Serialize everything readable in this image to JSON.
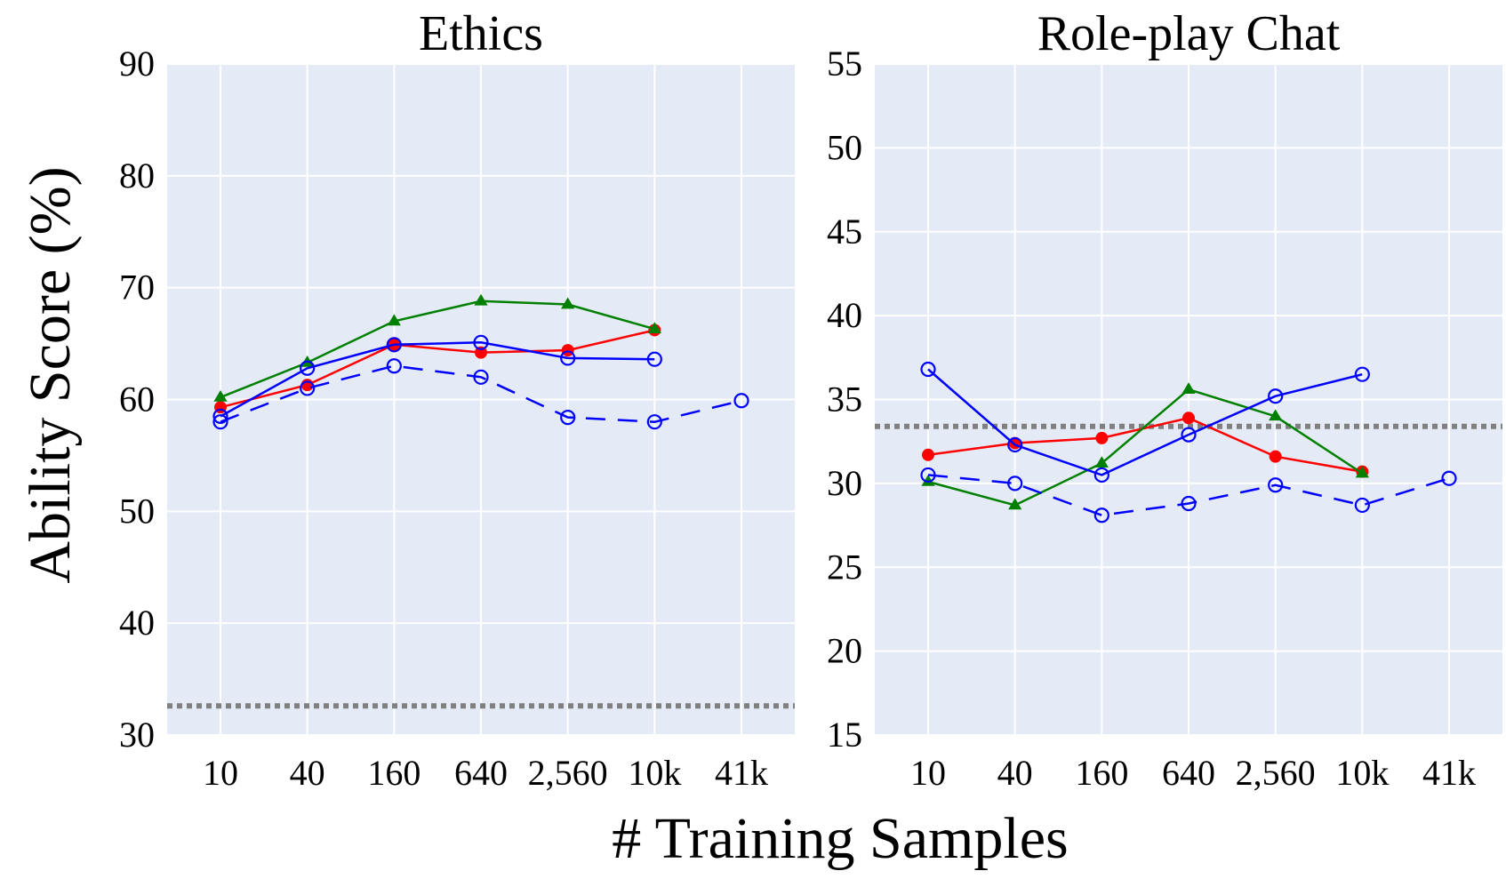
{
  "figure": {
    "ylabel": "Ability Score (%)",
    "xlabel": "# Training Samples"
  },
  "colors": {
    "panel_bg": "#e5ebf6",
    "grid": "#ffffff",
    "baseline": "#808080",
    "red": "#ff0000",
    "green": "#008000",
    "blue": "#0000ff"
  },
  "chart_data": [
    {
      "type": "line",
      "title": "Ethics",
      "xlabel": "# Training Samples",
      "ylabel": "Ability Score (%)",
      "categories": [
        "10",
        "40",
        "160",
        "640",
        "2,560",
        "10k",
        "41k"
      ],
      "ylim": [
        30,
        90
      ],
      "yticks": [
        30,
        40,
        50,
        60,
        70,
        80,
        90
      ],
      "grid": true,
      "baseline": 32.6,
      "series": [
        {
          "name": "red",
          "color": "#ff0000",
          "marker": "filled-circle",
          "dash": false,
          "values": [
            59.3,
            61.3,
            64.9,
            64.2,
            64.4,
            66.2,
            null
          ]
        },
        {
          "name": "green",
          "color": "#008000",
          "marker": "triangle",
          "dash": false,
          "values": [
            60.2,
            63.3,
            67.0,
            68.8,
            68.5,
            66.3,
            null
          ]
        },
        {
          "name": "blue solid",
          "color": "#0000ff",
          "marker": "open-circle",
          "dash": false,
          "values": [
            58.5,
            62.8,
            64.9,
            65.1,
            63.7,
            63.6,
            null
          ]
        },
        {
          "name": "blue dashed",
          "color": "#0000ff",
          "marker": "open-circle",
          "dash": true,
          "values": [
            58.0,
            61.0,
            63.0,
            62.0,
            58.4,
            58.0,
            59.9
          ]
        }
      ]
    },
    {
      "type": "line",
      "title": "Role-play Chat",
      "xlabel": "# Training Samples",
      "ylabel": "Ability Score (%)",
      "categories": [
        "10",
        "40",
        "160",
        "640",
        "2,560",
        "10k",
        "41k"
      ],
      "ylim": [
        15,
        55
      ],
      "yticks": [
        15,
        20,
        25,
        30,
        35,
        40,
        45,
        50,
        55
      ],
      "grid": true,
      "baseline": 33.4,
      "series": [
        {
          "name": "red",
          "color": "#ff0000",
          "marker": "filled-circle",
          "dash": false,
          "values": [
            31.7,
            32.4,
            32.7,
            33.9,
            31.6,
            30.7,
            null
          ]
        },
        {
          "name": "green",
          "color": "#008000",
          "marker": "triangle",
          "dash": false,
          "values": [
            30.1,
            28.7,
            31.2,
            35.6,
            34.0,
            30.6,
            null
          ]
        },
        {
          "name": "blue solid",
          "color": "#0000ff",
          "marker": "open-circle",
          "dash": false,
          "values": [
            36.8,
            32.3,
            30.5,
            32.9,
            35.2,
            36.5,
            null
          ]
        },
        {
          "name": "blue dashed",
          "color": "#0000ff",
          "marker": "open-circle",
          "dash": true,
          "values": [
            30.5,
            30.0,
            28.1,
            28.8,
            29.9,
            28.7,
            30.3
          ]
        }
      ]
    }
  ]
}
